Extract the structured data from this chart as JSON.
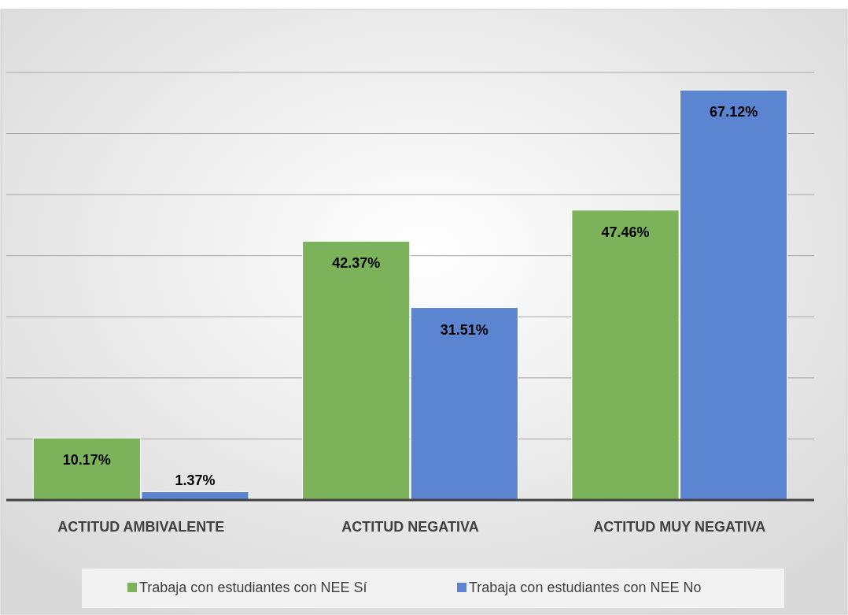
{
  "chart_data": {
    "type": "bar",
    "categories": [
      "ACTITUD AMBIVALENTE",
      "ACTITUD NEGATIVA",
      "ACTITUD MUY NEGATIVA"
    ],
    "series": [
      {
        "name": "Trabaja con estudiantes con NEE Sí",
        "color": "#7cb35a",
        "values": [
          10.17,
          42.37,
          47.46
        ],
        "value_labels": [
          "10.17%",
          "42.37%",
          "47.46%"
        ]
      },
      {
        "name": "Trabaja con estudiantes con NEE No",
        "color": "#5b85d0",
        "values": [
          1.37,
          31.51,
          67.12
        ],
        "value_labels": [
          "1.37%",
          "31.51%",
          "67.12%"
        ]
      }
    ],
    "ylim": [
      0,
      70
    ],
    "yticks": [
      {
        "value": 0,
        "label": null
      },
      {
        "value": 10,
        "label": null
      },
      {
        "value": 20,
        "label": null
      },
      {
        "value": 30,
        "label": null
      },
      {
        "value": 40,
        "label": null
      },
      {
        "value": 50,
        "label": null
      },
      {
        "value": 60,
        "label": null
      },
      {
        "value": 70,
        "label": null
      }
    ],
    "grid": "y",
    "tick_labels": "x",
    "legend": "bottom"
  }
}
